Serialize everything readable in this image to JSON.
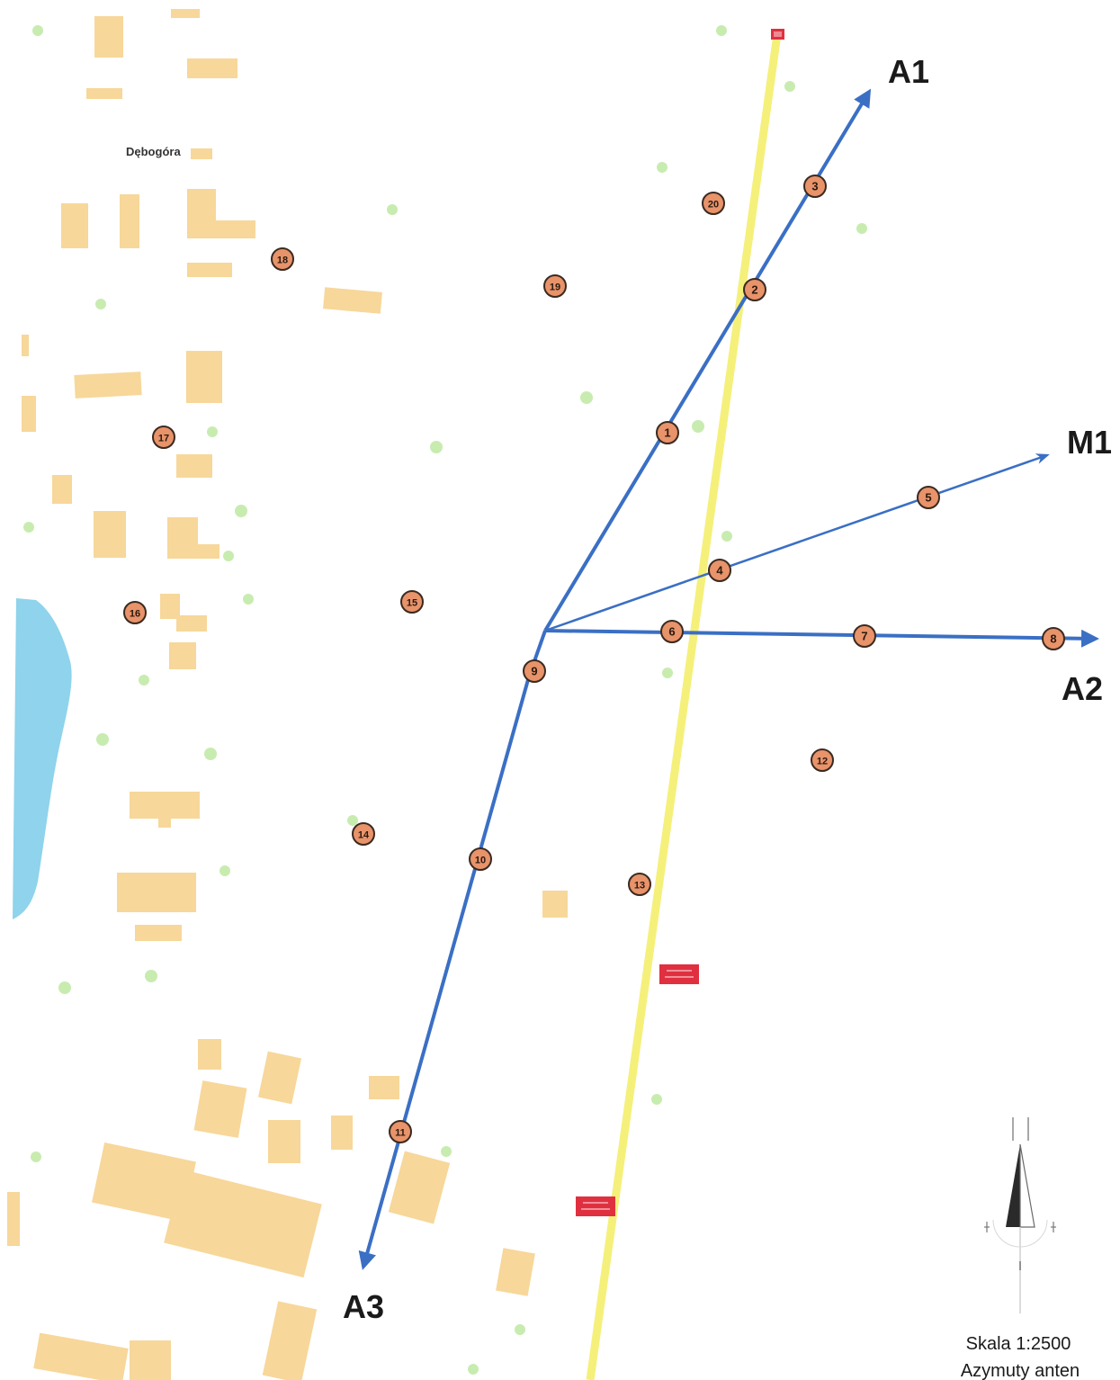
{
  "map": {
    "place_label": "Dębogóra",
    "antennas": [
      {
        "id": "A1",
        "label": "A1"
      },
      {
        "id": "M1",
        "label": "M1"
      },
      {
        "id": "A2",
        "label": "A2"
      },
      {
        "id": "A3",
        "label": "A3"
      }
    ],
    "points": [
      {
        "n": "1"
      },
      {
        "n": "2"
      },
      {
        "n": "3"
      },
      {
        "n": "4"
      },
      {
        "n": "5"
      },
      {
        "n": "6"
      },
      {
        "n": "7"
      },
      {
        "n": "8"
      },
      {
        "n": "9"
      },
      {
        "n": "10"
      },
      {
        "n": "11"
      },
      {
        "n": "12"
      },
      {
        "n": "13"
      },
      {
        "n": "14"
      },
      {
        "n": "15"
      },
      {
        "n": "16"
      },
      {
        "n": "17"
      },
      {
        "n": "18"
      },
      {
        "n": "19"
      },
      {
        "n": "20"
      }
    ],
    "scale_text": "Skala 1:2500",
    "legend_text": "Azymuty anten",
    "colors": {
      "building": "#f7d79a",
      "water": "#8fd3ec",
      "road": "#f5f07a",
      "azimuth": "#3a6fc4",
      "marker_fill": "#e8936a",
      "tree": "#c8ecb0",
      "sign": "#e03040"
    },
    "icons": [
      "north-arrow-icon"
    ]
  }
}
